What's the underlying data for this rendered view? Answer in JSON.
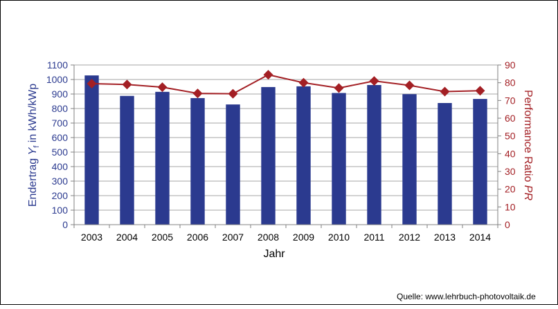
{
  "chart_data": {
    "type": "bar+line",
    "categories": [
      "2003",
      "2004",
      "2005",
      "2006",
      "2007",
      "2008",
      "2009",
      "2010",
      "2011",
      "2012",
      "2013",
      "2014"
    ],
    "series": [
      {
        "axis": "left",
        "type": "bar",
        "values": [
          1028,
          887,
          915,
          872,
          828,
          948,
          953,
          907,
          962,
          899,
          838,
          866
        ]
      },
      {
        "axis": "right",
        "type": "line",
        "values": [
          79.5,
          79.0,
          77.5,
          74.0,
          73.8,
          84.5,
          80.0,
          77.0,
          81.0,
          78.5,
          75.0,
          75.5
        ]
      }
    ],
    "xlabel": "Jahr",
    "ylabel_left": {
      "pre": "Endertrag ",
      "symbol": "Y",
      "subscript": "f",
      "post": " in kWh/kWp"
    },
    "ylabel_right": {
      "pre": "Performance Ratio ",
      "symbol": "PR"
    },
    "ylim_left": [
      0,
      1100
    ],
    "ylim_right": [
      0,
      90
    ],
    "yticks_left": [
      "0",
      "100",
      "200",
      "300",
      "400",
      "500",
      "600",
      "700",
      "800",
      "900",
      "1000",
      "1100"
    ],
    "yticks_right": [
      "0",
      "10",
      "20",
      "30",
      "40",
      "50",
      "60",
      "70",
      "80",
      "90"
    ],
    "grid": true,
    "colors": {
      "bar": "#2B3A8F",
      "line": "#A31F24",
      "left_axis_text": "#2B3A8F",
      "right_axis_text": "#A31F24",
      "grid": "#A6A6A6"
    }
  },
  "source_text": "Quelle: www.lehrbuch-photovoltaik.de"
}
